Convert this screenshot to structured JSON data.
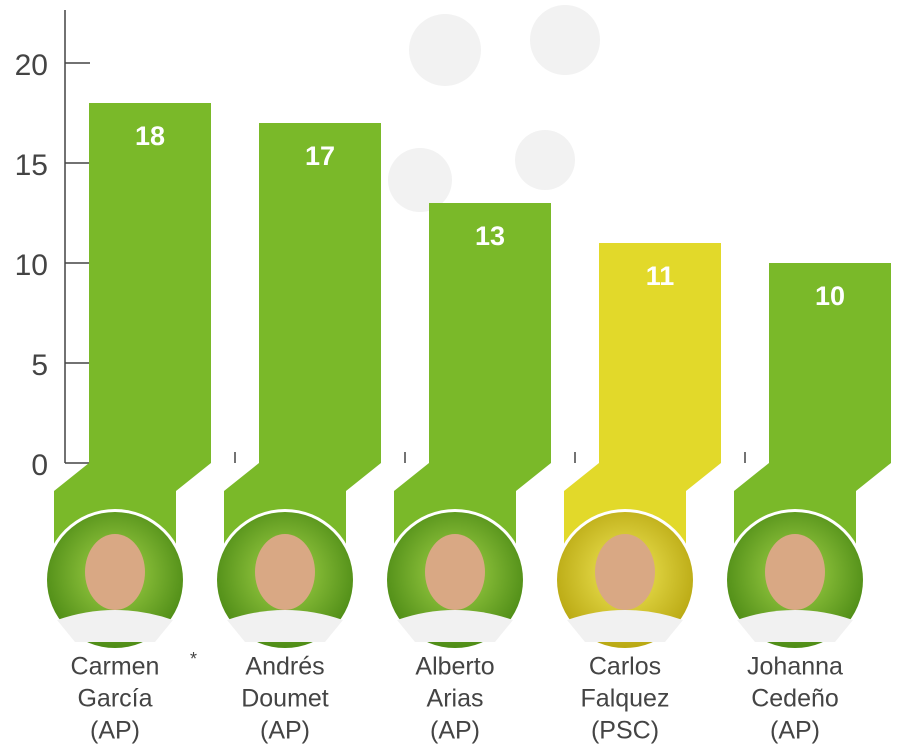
{
  "chart_data": {
    "type": "bar",
    "categories": [
      [
        "Carmen",
        "García",
        "(AP)"
      ],
      [
        "Andrés",
        "Doumet",
        "(AP)"
      ],
      [
        "Alberto",
        "Arias",
        "(AP)"
      ],
      [
        "Carlos",
        "Falquez",
        "(PSC)"
      ],
      [
        "Johanna",
        "Cedeño",
        "(AP)"
      ]
    ],
    "values": [
      18,
      17,
      13,
      11,
      10
    ],
    "colors": [
      "#7ab929",
      "#7ab929",
      "#7ab929",
      "#e2d92a",
      "#7ab929"
    ],
    "annotation": "*",
    "ylim": [
      0,
      20
    ],
    "yticks": [
      0,
      5,
      10,
      15,
      20
    ],
    "grid": false
  }
}
